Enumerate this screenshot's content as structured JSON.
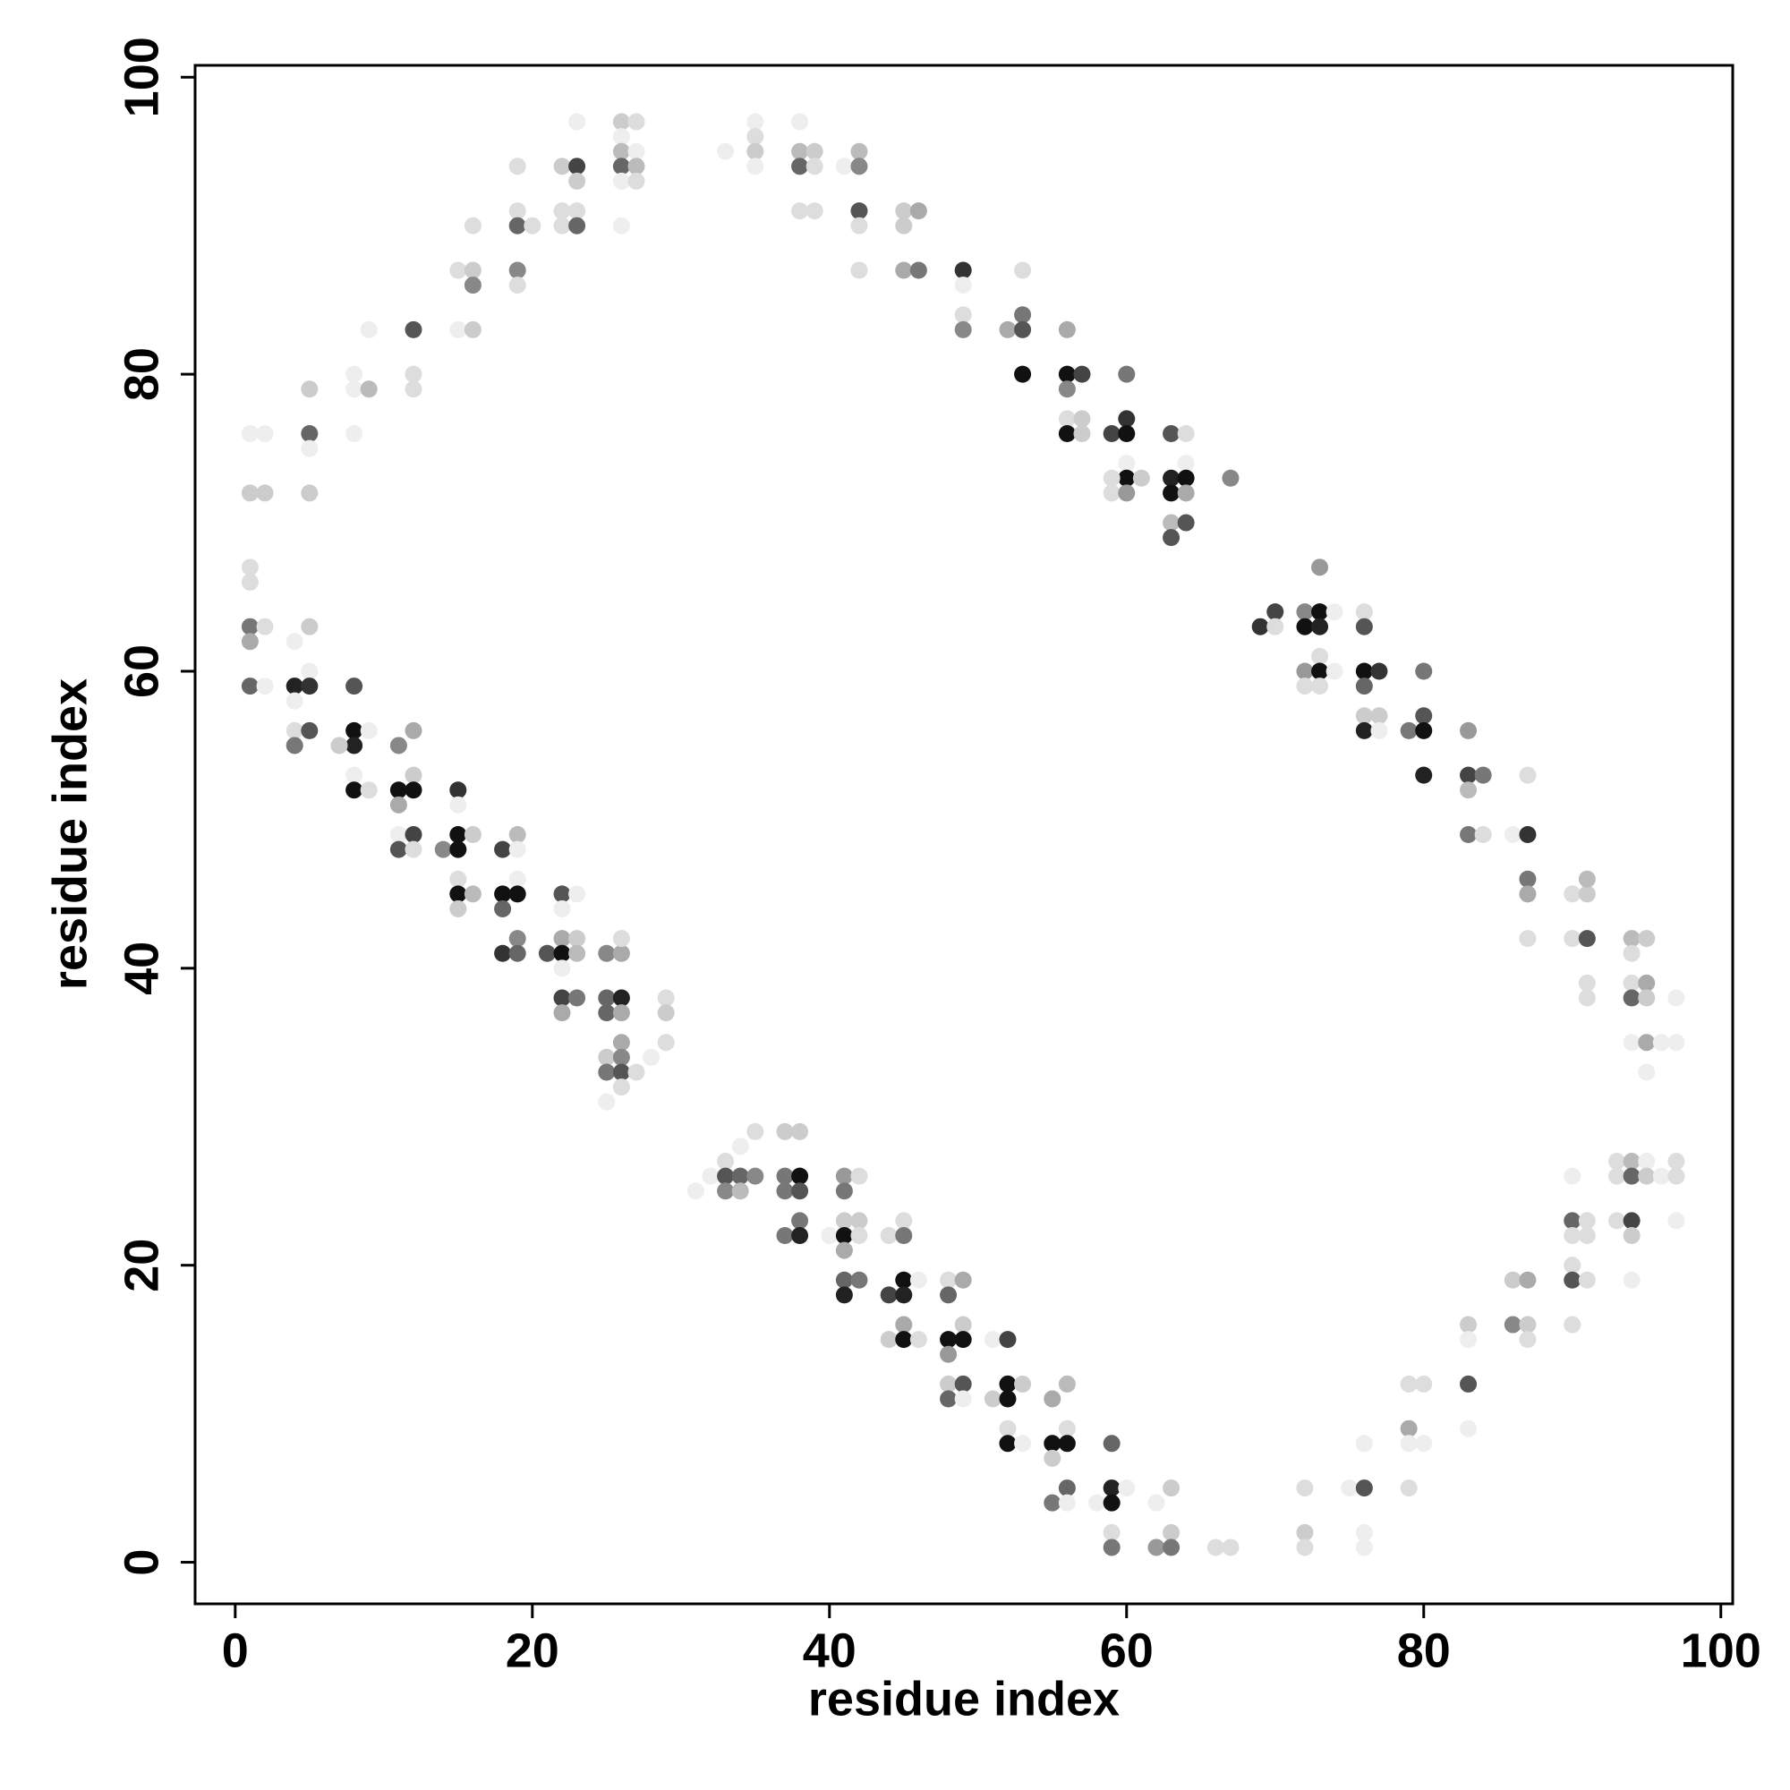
{
  "chart_data": {
    "type": "scatter",
    "xlabel": "residue index",
    "ylabel": "residue index",
    "xlim": [
      -2.7,
      100.8
    ],
    "ylim": [
      -2.8,
      100.8
    ],
    "xticks": [
      0,
      20,
      40,
      60,
      80,
      100
    ],
    "yticks": [
      0,
      20,
      40,
      60,
      80,
      100
    ],
    "grid": false,
    "x": [
      1,
      2,
      1,
      2,
      1,
      1,
      1,
      2,
      1,
      1,
      2,
      4,
      5,
      5,
      4,
      5,
      4,
      4,
      5,
      4,
      5,
      5,
      5,
      5,
      8,
      8,
      9,
      8,
      9,
      12,
      12,
      12,
      15,
      16,
      16,
      15,
      16,
      16,
      19,
      19,
      19,
      20,
      19,
      19,
      22,
      23,
      23,
      22,
      23,
      22,
      23,
      23,
      26,
      27,
      26,
      26,
      27,
      26,
      27,
      26,
      27,
      26,
      8,
      8,
      9,
      8,
      7,
      8,
      8,
      9,
      11,
      12,
      12,
      11,
      12,
      11,
      11,
      12,
      11,
      12,
      14,
      15,
      15,
      15,
      16,
      15,
      15,
      15,
      16,
      15,
      18,
      19,
      19,
      19,
      18,
      19,
      18,
      19,
      18,
      19,
      21,
      22,
      23,
      22,
      22,
      23,
      22,
      23,
      22,
      22,
      23,
      22,
      25,
      26,
      26,
      25,
      26,
      25,
      26,
      26,
      25,
      26,
      25,
      26,
      27,
      26,
      25,
      28,
      29,
      29,
      29,
      33,
      35,
      35,
      35,
      35,
      38,
      38,
      39,
      38,
      39,
      38,
      39,
      41,
      42,
      42,
      42,
      42,
      42,
      45,
      46,
      45,
      45,
      46,
      49,
      49,
      49,
      49,
      53,
      52,
      53,
      53,
      53,
      56,
      56,
      57,
      56,
      56,
      57,
      56,
      57,
      60,
      59,
      60,
      60,
      60,
      60,
      59,
      61,
      59,
      60,
      63,
      64,
      64,
      63,
      64,
      63,
      64,
      63,
      64,
      63,
      67,
      69,
      70,
      70,
      72,
      73,
      74,
      72,
      73,
      73,
      73,
      72,
      73,
      74,
      72,
      73,
      76,
      76,
      76,
      77,
      76,
      76,
      77,
      76,
      77,
      80,
      79,
      80,
      80,
      80,
      83,
      83,
      84,
      83,
      83,
      84,
      86,
      87,
      87,
      87,
      87,
      87,
      90,
      91,
      91,
      90,
      91,
      91,
      91,
      94,
      95,
      94,
      94,
      95,
      94,
      95,
      97,
      94,
      95,
      96,
      97,
      95,
      93,
      94,
      95,
      97,
      90,
      93,
      94,
      95,
      96,
      97,
      90,
      91,
      93,
      94,
      90,
      91,
      94,
      97,
      90,
      90,
      91,
      94,
      90,
      86,
      87,
      86,
      87,
      87,
      83,
      83,
      83,
      83,
      79,
      80,
      79,
      79,
      80,
      79,
      76,
      75,
      76,
      76,
      76,
      72,
      72,
      72,
      31,
      32,
      33,
      34,
      35,
      33,
      34,
      35,
      33,
      34,
      37,
      38,
      37,
      38,
      37,
      38,
      38,
      37,
      38,
      40,
      41,
      42,
      41,
      41,
      42,
      41,
      42,
      41,
      41,
      42,
      41,
      44,
      45,
      45,
      44,
      45,
      45,
      46,
      45,
      44,
      45,
      46,
      48,
      49,
      48,
      49,
      48,
      49,
      48,
      51,
      52,
      48,
      49,
      48,
      49,
      51,
      52,
      53,
      52,
      52,
      52,
      53,
      55,
      56,
      56,
      55,
      56,
      55,
      55,
      56,
      56,
      58,
      59,
      59,
      60,
      59,
      59,
      59,
      62,
      63,
      63,
      62,
      63,
      66,
      67
    ],
    "values": [
      76,
      76,
      72,
      72,
      67,
      66,
      63,
      63,
      62,
      59,
      59,
      62,
      63,
      60,
      59,
      59,
      58,
      56,
      56,
      55,
      79,
      76,
      75,
      72,
      80,
      79,
      79,
      76,
      83,
      83,
      80,
      79,
      87,
      87,
      86,
      83,
      83,
      90,
      94,
      91,
      90,
      90,
      87,
      86,
      94,
      94,
      93,
      91,
      91,
      90,
      90,
      97,
      97,
      97,
      96,
      95,
      95,
      94,
      94,
      93,
      93,
      90,
      59,
      56,
      56,
      55,
      55,
      53,
      52,
      52,
      55,
      56,
      53,
      52,
      52,
      51,
      49,
      49,
      48,
      48,
      48,
      52,
      51,
      49,
      49,
      48,
      46,
      45,
      45,
      44,
      48,
      49,
      48,
      46,
      45,
      45,
      44,
      42,
      41,
      41,
      41,
      45,
      45,
      44,
      42,
      42,
      41,
      41,
      40,
      38,
      38,
      37,
      41,
      41,
      42,
      38,
      38,
      37,
      37,
      35,
      34,
      34,
      33,
      33,
      33,
      32,
      31,
      34,
      38,
      37,
      35,
      95,
      97,
      96,
      95,
      94,
      97,
      95,
      95,
      94,
      94,
      91,
      91,
      94,
      95,
      94,
      91,
      90,
      87,
      91,
      91,
      90,
      87,
      87,
      87,
      86,
      84,
      83,
      87,
      83,
      84,
      83,
      80,
      83,
      80,
      80,
      79,
      77,
      77,
      76,
      76,
      80,
      76,
      77,
      76,
      74,
      73,
      73,
      73,
      72,
      72,
      76,
      76,
      74,
      73,
      73,
      72,
      72,
      70,
      70,
      69,
      73,
      63,
      64,
      63,
      64,
      64,
      64,
      63,
      63,
      67,
      61,
      60,
      60,
      60,
      59,
      59,
      64,
      63,
      60,
      60,
      59,
      57,
      57,
      56,
      56,
      60,
      56,
      57,
      56,
      53,
      56,
      53,
      53,
      52,
      49,
      49,
      49,
      49,
      53,
      46,
      45,
      42,
      45,
      45,
      46,
      42,
      42,
      39,
      38,
      42,
      42,
      41,
      39,
      39,
      38,
      38,
      38,
      35,
      35,
      35,
      35,
      33,
      27,
      27,
      27,
      27,
      26,
      26,
      26,
      26,
      26,
      26,
      23,
      23,
      23,
      23,
      22,
      22,
      22,
      23,
      20,
      19,
      19,
      19,
      16,
      19,
      19,
      16,
      16,
      15,
      16,
      15,
      12,
      9,
      12,
      12,
      9,
      8,
      8,
      5,
      8,
      5,
      5,
      2,
      1,
      5,
      2,
      1,
      25,
      26,
      27,
      28,
      29,
      26,
      26,
      26,
      25,
      25,
      29,
      29,
      26,
      26,
      25,
      25,
      23,
      22,
      22,
      22,
      26,
      26,
      25,
      23,
      23,
      22,
      22,
      21,
      19,
      19,
      18,
      22,
      23,
      22,
      18,
      19,
      18,
      19,
      16,
      15,
      15,
      15,
      19,
      19,
      18,
      16,
      15,
      15,
      14,
      15,
      15,
      12,
      12,
      11,
      11,
      11,
      12,
      12,
      11,
      9,
      8,
      8,
      11,
      12,
      9,
      8,
      8,
      7,
      4,
      5,
      4,
      4,
      8,
      5,
      5,
      4,
      2,
      1,
      4,
      5,
      2,
      1,
      1,
      1,
      1
    ],
    "colors": [
      "#eee",
      "#eee",
      "#ccc",
      "#ccc",
      "#ddd",
      "#ddd",
      "#777",
      "#ddd",
      "#aaa",
      "#666",
      "#eee",
      "#eee",
      "#ccc",
      "#eee",
      "#222",
      "#333",
      "#eee",
      "#ddd",
      "#555",
      "#777",
      "#ccc",
      "#666",
      "#eee",
      "#ccc",
      "#eee",
      "#eee",
      "#bbb",
      "#eee",
      "#eee",
      "#555",
      "#ddd",
      "#ddd",
      "#ddd",
      "#ccc",
      "#888",
      "#eee",
      "#ccc",
      "#ddd",
      "#ddd",
      "#ddd",
      "#666",
      "#ddd",
      "#888",
      "#ddd",
      "#ccc",
      "#444",
      "#ccc",
      "#ddd",
      "#ddd",
      "#ddd",
      "#666",
      "#eee",
      "#ccc",
      "#ddd",
      "#eee",
      "#bbb",
      "#eee",
      "#666",
      "#bbb",
      "#eee",
      "#ddd",
      "#eee",
      "#555",
      "#111",
      "#eee",
      "#222",
      "#ccc",
      "#eee",
      "#111",
      "#ddd",
      "#888",
      "#aaa",
      "#ccc",
      "#111",
      "#111",
      "#aaa",
      "#eee",
      "#444",
      "#555",
      "#ddd",
      "#888",
      "#333",
      "#eee",
      "#111",
      "#ccc",
      "#111",
      "#ddd",
      "#111",
      "#bbb",
      "#ccc",
      "#444",
      "#bbb",
      "#eee",
      "#eee",
      "#111",
      "#111",
      "#666",
      "#888",
      "#333",
      "#666",
      "#555",
      "#555",
      "#eee",
      "#eee",
      "#aaa",
      "#ccc",
      "#111",
      "#bbb",
      "#eee",
      "#444",
      "#777",
      "#aaa",
      "#888",
      "#aaa",
      "#ddd",
      "#666",
      "#222",
      "#666",
      "#aaa",
      "#aaa",
      "#ccc",
      "#888",
      "#777",
      "#555",
      "#ddd",
      "#ddd",
      "#eee",
      "#eee",
      "#ddd",
      "#ccc",
      "#ddd",
      "#eee",
      "#eee",
      "#ddd",
      "#ccc",
      "#eee",
      "#eee",
      "#bbb",
      "#ccc",
      "#666",
      "#ddd",
      "#ddd",
      "#ddd",
      "#eee",
      "#bbb",
      "#888",
      "#555",
      "#ddd",
      "#ddd",
      "#ccc",
      "#aaa",
      "#ccc",
      "#aaa",
      "#777",
      "#333",
      "#eee",
      "#ddd",
      "#888",
      "#ddd",
      "#aaa",
      "#777",
      "#555",
      "#111",
      "#aaa",
      "#111",
      "#444",
      "#888",
      "#ddd",
      "#ccc",
      "#111",
      "#ccc",
      "#777",
      "#444",
      "#333",
      "#111",
      "#eee",
      "#111",
      "#ddd",
      "#ccc",
      "#ddd",
      "#999",
      "#555",
      "#ddd",
      "#eee",
      "#222",
      "#111",
      "#111",
      "#aaa",
      "#bbb",
      "#555",
      "#555",
      "#888",
      "#333",
      "#444",
      "#ddd",
      "#888",
      "#111",
      "#eee",
      "#111",
      "#222",
      "#999",
      "#ddd",
      "#999",
      "#111",
      "#eee",
      "#ddd",
      "#ddd",
      "#ddd",
      "#555",
      "#111",
      "#333",
      "#666",
      "#ccc",
      "#ccc",
      "#222",
      "#eee",
      "#777",
      "#777",
      "#555",
      "#111",
      "#222",
      "#999",
      "#444",
      "#777",
      "#bbb",
      "#777",
      "#ddd",
      "#eee",
      "#333",
      "#ddd",
      "#777",
      "#aaa",
      "#ddd",
      "#ddd",
      "#ccc",
      "#bbb",
      "#ddd",
      "#555",
      "#ddd",
      "#ddd",
      "#bbb",
      "#ccc",
      "#ddd",
      "#ddd",
      "#aaa",
      "#666",
      "#ccc",
      "#eee",
      "#eee",
      "#aaa",
      "#eee",
      "#eee",
      "#eee",
      "#ddd",
      "#bbb",
      "#eee",
      "#ddd",
      "#eee",
      "#ddd",
      "#666",
      "#ccc",
      "#eee",
      "#ddd",
      "#666",
      "#ddd",
      "#ddd",
      "#444",
      "#ddd",
      "#ddd",
      "#ccc",
      "#eee",
      "#ddd",
      "#555",
      "#ddd",
      "#eee",
      "#ddd",
      "#ccc",
      "#aaa",
      "#888",
      "#ccc",
      "#ddd",
      "#ccc",
      "#eee",
      "#555",
      "#eee",
      "#ddd",
      "#ddd",
      "#aaa",
      "#eee",
      "#eee",
      "#ddd",
      "#eee",
      "#eee",
      "#555",
      "#eee",
      "#eee",
      "#ddd",
      "#ccc",
      "#ddd",
      "#eee",
      "#eee",
      "#ddd",
      "#eee",
      "#ddd",
      "#555",
      "#666",
      "#888",
      "#888",
      "#bbb",
      "#ccc",
      "#ccc",
      "#777",
      "#111",
      "#777",
      "#555",
      "#777",
      "#777",
      "#222",
      "#eee",
      "#999",
      "#ddd",
      "#777",
      "#ccc",
      "#ccc",
      "#111",
      "#ddd",
      "#aaa",
      "#666",
      "#777",
      "#222",
      "#ddd",
      "#ddd",
      "#777",
      "#444",
      "#111",
      "#222",
      "#eee",
      "#aaa",
      "#ccc",
      "#111",
      "#ddd",
      "#ddd",
      "#aaa",
      "#666",
      "#ccc",
      "#111",
      "#111",
      "#999",
      "#eee",
      "#444",
      "#ccc",
      "#555",
      "#666",
      "#eee",
      "#ccc",
      "#111",
      "#ccc",
      "#111",
      "#ddd",
      "#111",
      "#eee",
      "#aaa",
      "#bbb",
      "#ddd",
      "#111",
      "#111",
      "#ccc",
      "#777",
      "#666",
      "#eee",
      "#eee",
      "#666",
      "#222",
      "#eee",
      "#111",
      "#ddd",
      "#777",
      "#eee",
      "#ccc",
      "#ccc",
      "#999",
      "#777",
      "#ddd",
      "#ddd"
    ]
  }
}
